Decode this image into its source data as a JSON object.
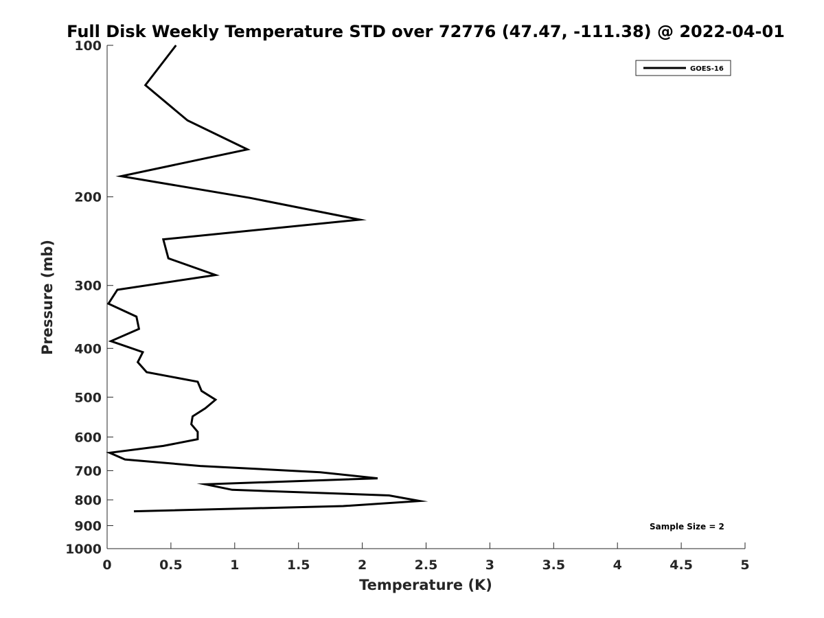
{
  "chart_data": {
    "type": "line",
    "title": "Full Disk Weekly Temperature STD over 72776 (47.47, -111.38) @ 2022-04-01",
    "xlabel": "Temperature (K)",
    "ylabel": "Pressure (mb)",
    "xlim": [
      0,
      5
    ],
    "ylim": [
      100,
      1000
    ],
    "y_scale": "log",
    "y_reversed": true,
    "x_ticks": [
      "0",
      "0.5",
      "1",
      "1.5",
      "2",
      "2.5",
      "3",
      "3.5",
      "4",
      "4.5",
      "5"
    ],
    "y_ticks": [
      "100",
      "200",
      "300",
      "400",
      "500",
      "600",
      "700",
      "800",
      "900",
      "1000"
    ],
    "grid": false,
    "legend_position": "top-right",
    "series": [
      {
        "name": "GOES-16",
        "color": "#000000",
        "points": [
          [
            0.54,
            100
          ],
          [
            0.3,
            120
          ],
          [
            0.63,
            141
          ],
          [
            1.1,
            161
          ],
          [
            0.11,
            182
          ],
          [
            1.12,
            201
          ],
          [
            1.98,
            222
          ],
          [
            0.44,
            243
          ],
          [
            0.48,
            265
          ],
          [
            0.85,
            286
          ],
          [
            0.08,
            306
          ],
          [
            0.01,
            326
          ],
          [
            0.23,
            346
          ],
          [
            0.25,
            366
          ],
          [
            0.03,
            387
          ],
          [
            0.28,
            407
          ],
          [
            0.24,
            426
          ],
          [
            0.31,
            446
          ],
          [
            0.71,
            466
          ],
          [
            0.74,
            486
          ],
          [
            0.85,
            506
          ],
          [
            0.77,
            526
          ],
          [
            0.67,
            546
          ],
          [
            0.66,
            566
          ],
          [
            0.71,
            586
          ],
          [
            0.71,
            606
          ],
          [
            0.44,
            625
          ],
          [
            0.02,
            645
          ],
          [
            0.14,
            665
          ],
          [
            0.73,
            685
          ],
          [
            1.67,
            705
          ],
          [
            2.12,
            725
          ],
          [
            0.77,
            745
          ],
          [
            0.98,
            764
          ],
          [
            2.21,
            784
          ],
          [
            2.45,
            804
          ],
          [
            1.85,
            823
          ],
          [
            0.21,
            843
          ]
        ]
      }
    ],
    "annotation": "Sample Size = 2"
  }
}
